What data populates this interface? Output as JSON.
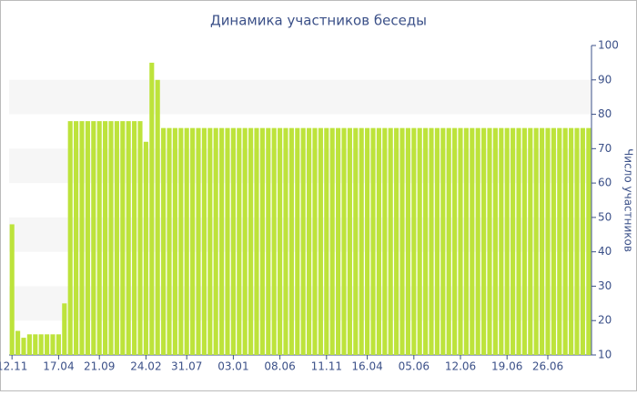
{
  "chart_data": {
    "type": "bar",
    "title": "Динамика участников беседы",
    "y_label": "Число участников",
    "categories": [
      "12.11",
      null,
      null,
      null,
      null,
      null,
      null,
      null,
      "17.04",
      null,
      null,
      null,
      null,
      null,
      null,
      "21.09",
      null,
      null,
      null,
      null,
      null,
      null,
      null,
      "24.02",
      null,
      null,
      null,
      null,
      null,
      null,
      "31.07",
      null,
      null,
      null,
      null,
      null,
      null,
      null,
      "03.01",
      null,
      null,
      null,
      null,
      null,
      null,
      null,
      "08.06",
      null,
      null,
      null,
      null,
      null,
      null,
      null,
      "11.11",
      null,
      null,
      null,
      null,
      null,
      null,
      "16.04",
      null,
      null,
      null,
      null,
      null,
      null,
      null,
      "05.06",
      null,
      null,
      null,
      null,
      null,
      null,
      null,
      "12.06",
      null,
      null,
      null,
      null,
      null,
      null,
      null,
      "19.06",
      null,
      null,
      null,
      null,
      null,
      null,
      "26.06",
      null,
      null,
      null,
      null,
      null,
      null,
      null
    ],
    "values": [
      48,
      17,
      15,
      16,
      16,
      16,
      16,
      16,
      16,
      25,
      78,
      78,
      78,
      78,
      78,
      78,
      78,
      78,
      78,
      78,
      78,
      78,
      78,
      72,
      95,
      90,
      76,
      76,
      76,
      76,
      76,
      76,
      76,
      76,
      76,
      76,
      76,
      76,
      76,
      76,
      76,
      76,
      76,
      76,
      76,
      76,
      76,
      76,
      76,
      76,
      76,
      76,
      76,
      76,
      76,
      76,
      76,
      76,
      76,
      76,
      76,
      76,
      76,
      76,
      76,
      76,
      76,
      76,
      76,
      76,
      76,
      76,
      76,
      76,
      76,
      76,
      76,
      76,
      76,
      76,
      76,
      76,
      76,
      76,
      76,
      76,
      76,
      76,
      76,
      76,
      76,
      76,
      76,
      76,
      76,
      76,
      76,
      76,
      76,
      76
    ],
    "color": "#bde33b",
    "ylim": [
      10,
      100
    ],
    "yticks": [
      10,
      20,
      30,
      40,
      50,
      60,
      70,
      80,
      90,
      100
    ],
    "grid": true
  }
}
